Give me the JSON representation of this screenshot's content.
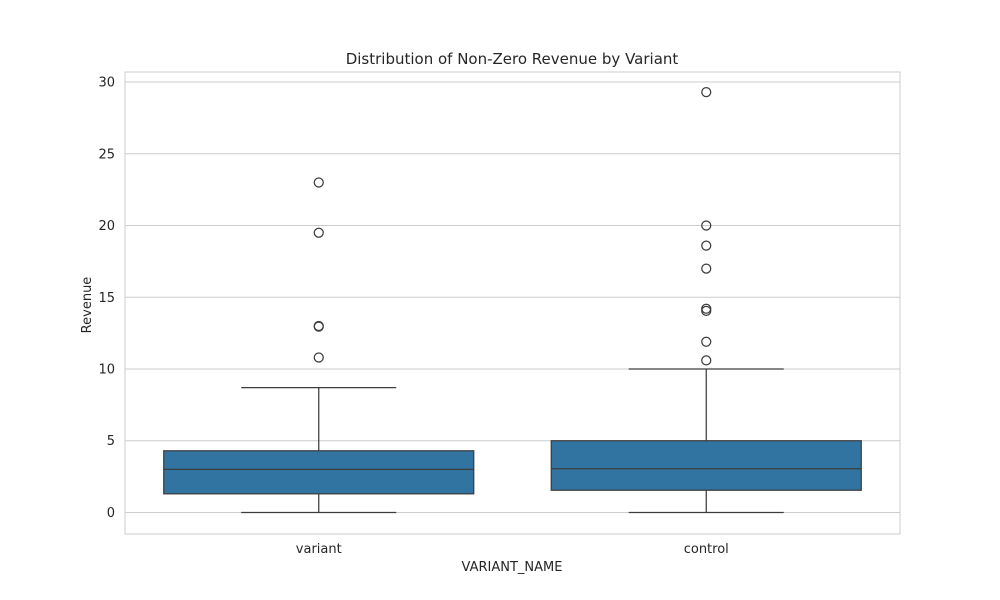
{
  "chart_data": {
    "type": "box",
    "title": "Distribution of Non-Zero Revenue by Variant",
    "xlabel": "VARIANT_NAME",
    "ylabel": "Revenue",
    "ylim": [
      -1.5,
      30.7
    ],
    "yticks": [
      0,
      5,
      10,
      15,
      20,
      25,
      30
    ],
    "grid": true,
    "colors": {
      "box_fill": "#3274a1",
      "box_edge": "#3d3d3d",
      "grid": "#cccccc",
      "frame": "#cccccc",
      "text": "#262626"
    },
    "series": [
      {
        "category": "variant",
        "whisker_low": 0,
        "q1": 1.3,
        "median": 3.0,
        "q3": 4.3,
        "whisker_high": 8.7,
        "outliers": [
          10.8,
          12.95,
          13.0,
          19.5,
          23.0
        ]
      },
      {
        "category": "control",
        "whisker_low": 0,
        "q1": 1.55,
        "median": 3.05,
        "q3": 5.0,
        "whisker_high": 10.0,
        "outliers": [
          10.6,
          11.9,
          14.05,
          14.2,
          17.0,
          18.6,
          20.0,
          29.3
        ]
      }
    ]
  }
}
